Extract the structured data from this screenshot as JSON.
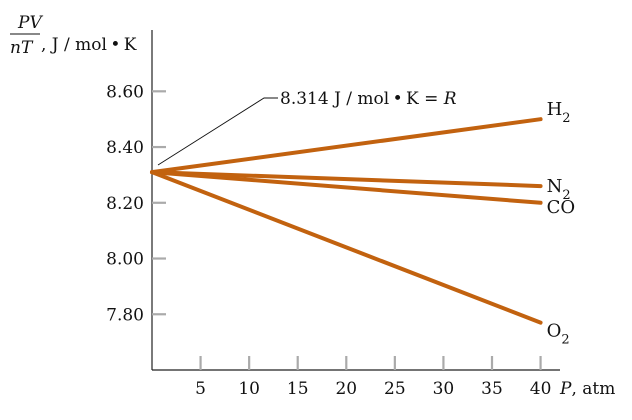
{
  "chart_data": {
    "type": "line",
    "title": "",
    "x": [
      0,
      40
    ],
    "xlim": [
      0,
      42
    ],
    "ylim": [
      7.6,
      8.82
    ],
    "xticks": [
      5,
      10,
      15,
      20,
      25,
      30,
      35,
      40
    ],
    "yticks": [
      7.8,
      8.0,
      8.2,
      8.4,
      8.6
    ],
    "ytick_labels": [
      "7.80",
      "8.00",
      "8.20",
      "8.40",
      "8.60"
    ],
    "xlabel": {
      "symbol": "P",
      "unit": ", atm"
    },
    "ylabel": {
      "numerator": "PV",
      "denominator": "nT",
      "unit": ", J / mol • K"
    },
    "series": [
      {
        "name": "H",
        "subscript": "2",
        "values": [
          8.31,
          8.5
        ]
      },
      {
        "name": "N",
        "subscript": "2",
        "values": [
          8.31,
          8.26
        ]
      },
      {
        "name": "CO",
        "subscript": "",
        "values": [
          8.31,
          8.2
        ]
      },
      {
        "name": "O",
        "subscript": "2",
        "values": [
          8.31,
          7.77
        ]
      }
    ],
    "annotation": {
      "text": "8.314 J / mol • K = ",
      "symbol": "R",
      "x": 0,
      "y": 8.314
    },
    "line_color": "#c2620f",
    "grid": false,
    "legend": "none"
  }
}
